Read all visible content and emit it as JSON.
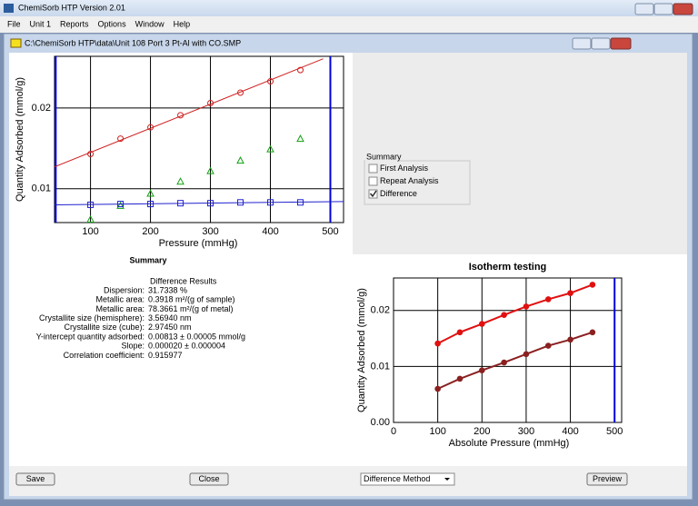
{
  "window": {
    "title": "ChemiSorb HTP Version 2.01",
    "menu": [
      "File",
      "Unit 1",
      "Reports",
      "Options",
      "Window",
      "Help"
    ]
  },
  "document": {
    "title": "C:\\ChemiSorb HTP\\data\\Unit 108 Port 3 Pt-Al with CO.SMP"
  },
  "chart_data": [
    {
      "type": "scatter",
      "x_label": "Pressure (mmHg)",
      "y_label": "Quantity Adsorbed (mmol/g)",
      "xlim": [
        40,
        522
      ],
      "ylim": [
        0.0058,
        0.0264
      ],
      "xticks": [
        100,
        200,
        300,
        400,
        500
      ],
      "yticks": [
        0.01,
        0.02
      ],
      "grid": true,
      "vlines": [
        42,
        500
      ],
      "vline_color": "#0000e0",
      "series": [
        {
          "color": "#d02020",
          "marker": "circle",
          "x": [
            100,
            150,
            200,
            250,
            300,
            350,
            400,
            450
          ],
          "values": [
            0.0143,
            0.0162,
            0.0176,
            0.0191,
            0.0206,
            0.0219,
            0.0233,
            0.0247
          ]
        },
        {
          "color": "#d02020",
          "marker": "none",
          "x": [
            40,
            488
          ],
          "values": [
            0.0127,
            0.0261
          ]
        },
        {
          "color": "#10a010",
          "marker": "triangle",
          "x": [
            100,
            150,
            200,
            250,
            300,
            350,
            400,
            450
          ],
          "values": [
            0.0062,
            0.0079,
            0.0094,
            0.0109,
            0.0122,
            0.0135,
            0.0149,
            0.0162
          ]
        },
        {
          "color": "#2020d0",
          "marker": "square",
          "x": [
            100,
            150,
            200,
            250,
            300,
            350,
            400,
            450
          ],
          "values": [
            0.008,
            0.0081,
            0.0081,
            0.0082,
            0.0082,
            0.0083,
            0.0083,
            0.0083
          ]
        },
        {
          "color": "#2020d0",
          "marker": "none",
          "x": [
            40,
            522
          ],
          "values": [
            0.008,
            0.0084
          ]
        }
      ]
    },
    {
      "type": "line",
      "title": "Isotherm testing",
      "x_label": "Absolute Pressure (mmHg)",
      "y_label": "Quantity Adsorbed (mmol/g)",
      "xlim": [
        0,
        516
      ],
      "ylim": [
        0,
        0.0258
      ],
      "xticks": [
        0,
        100,
        200,
        300,
        400,
        500
      ],
      "yticks": [
        {
          "value": 0,
          "label": "0.00"
        },
        0.01,
        0.02
      ],
      "grid": true,
      "vlines": [
        500
      ],
      "vline_color": "#0000e0",
      "x": [
        100,
        150,
        200,
        250,
        300,
        350,
        400,
        450
      ],
      "series": [
        {
          "color": "#e01010",
          "marker": "filled-circle",
          "values": [
            0.0141,
            0.0161,
            0.0176,
            0.0192,
            0.0207,
            0.022,
            0.0231,
            0.0246
          ]
        },
        {
          "color": "#8b2020",
          "marker": "filled-circle",
          "values": [
            0.006,
            0.0078,
            0.0093,
            0.0107,
            0.0122,
            0.0137,
            0.0148,
            0.0161
          ]
        }
      ]
    }
  ],
  "summary": {
    "title": "Summary",
    "heading": "Difference Results",
    "rows": [
      [
        "Dispersion:",
        "31.7338 %"
      ],
      [
        "Metallic area:",
        "0.3918 m²/(g of sample)"
      ],
      [
        "Metallic area:",
        "78.3661 m²/(g of metal)"
      ],
      [
        "Crystallite size (hemisphere):",
        "3.56940 nm"
      ],
      [
        "Crystallite size (cube):",
        "2.97450 nm"
      ],
      [
        "Y-intercept quantity adsorbed:",
        "0.00813 ± 0.00005 mmol/g"
      ],
      [
        "Slope:",
        "0.000020 ± 0.000004"
      ],
      [
        "Correlation coefficient:",
        "0.915977"
      ]
    ]
  },
  "options": {
    "title": "Summary",
    "items": [
      {
        "label": "First Analysis",
        "checked": false
      },
      {
        "label": "Repeat Analysis",
        "checked": false
      },
      {
        "label": "Difference",
        "checked": true
      }
    ]
  },
  "buttons": {
    "save": "Save",
    "close": "Close",
    "method": "Difference Method",
    "preview": "Preview"
  }
}
